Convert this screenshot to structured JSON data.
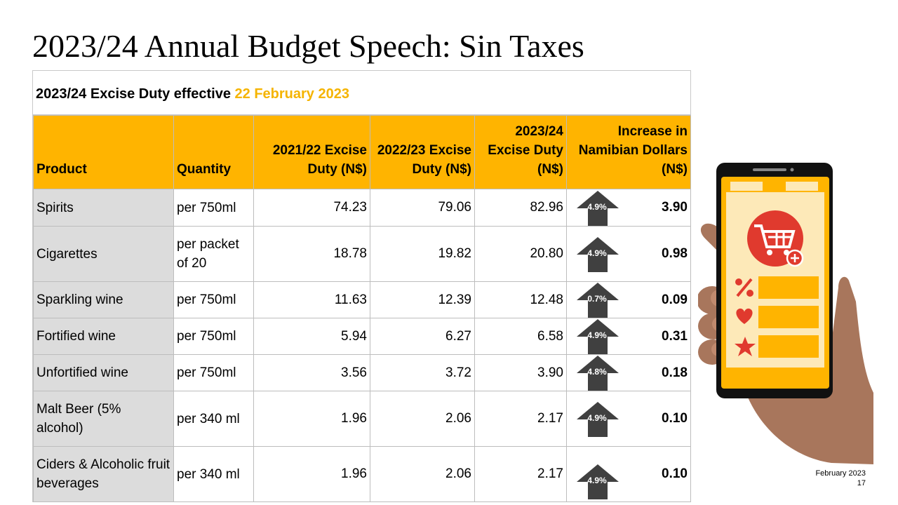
{
  "slide": {
    "title": "2023/24 Annual Budget Speech: Sin Taxes"
  },
  "table": {
    "caption_prefix": "2023/24 Excise Duty effective ",
    "caption_date": "22 February 2023",
    "header_color": "#FFB400",
    "accent_color": "#F5B400",
    "headers": {
      "product": "Product",
      "quantity": "Quantity",
      "y2122": "2021/22 Excise Duty (N$)",
      "y2223": "2022/23 Excise Duty (N$)",
      "y2324": "2023/24 Excise Duty (N$)",
      "increase": "Increase in Namibian Dollars (N$)"
    },
    "rows": [
      {
        "product": "Spirits",
        "quantity": "per 750ml",
        "y2122": "74.23",
        "y2223": "79.06",
        "y2324": "82.96",
        "pct": "4.9%",
        "increase": "3.90"
      },
      {
        "product": "Cigarettes",
        "quantity": "per packet of 20",
        "y2122": "18.78",
        "y2223": "19.82",
        "y2324": "20.80",
        "pct": "4.9%",
        "increase": "0.98"
      },
      {
        "product": "Sparkling wine",
        "quantity": "per 750ml",
        "y2122": "11.63",
        "y2223": "12.39",
        "y2324": "12.48",
        "pct": "0.7%",
        "increase": "0.09"
      },
      {
        "product": "Fortified wine",
        "quantity": "per 750ml",
        "y2122": "5.94",
        "y2223": "6.27",
        "y2324": "6.58",
        "pct": "4.9%",
        "increase": "0.31"
      },
      {
        "product": "Unfortified wine",
        "quantity": "per 750ml",
        "y2122": "3.56",
        "y2223": "3.72",
        "y2324": "3.90",
        "pct": "4.8%",
        "increase": "0.18"
      },
      {
        "product": "Malt Beer (5% alcohol)",
        "quantity": "per 340 ml",
        "y2122": "1.96",
        "y2223": "2.06",
        "y2324": "2.17",
        "pct": "4.9%",
        "increase": "0.10"
      },
      {
        "product": "Ciders & Alcoholic fruit beverages",
        "quantity": "per 340 ml",
        "y2122": "1.96",
        "y2223": "2.06",
        "y2324": "2.17",
        "pct": "4.9%",
        "increase": "0.10"
      }
    ]
  },
  "illustration": {
    "icons": [
      "hand-icon",
      "smartphone-icon",
      "shopping-cart-icon",
      "percent-icon",
      "heart-icon",
      "star-icon"
    ]
  },
  "footer": {
    "date": "February 2023",
    "page": "17"
  }
}
